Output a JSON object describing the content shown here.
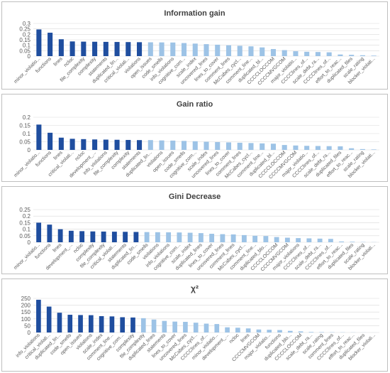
{
  "colors": {
    "top": "#1f4e9f",
    "rest": "#9dc3e6",
    "grid": "#d9d9d9",
    "axis_text": "#595959"
  },
  "chart_data": [
    {
      "type": "bar",
      "title": "Information gain",
      "ylim": [
        0,
        0.3
      ],
      "yticks": [
        0,
        0.05,
        0.1,
        0.15,
        0.2,
        0.25,
        0.3
      ],
      "grid": true,
      "highlighted_count": 10,
      "categories": [
        "minor_violatio...",
        "functions",
        "lines",
        "ncloc",
        "file_complexity",
        "complexity",
        "statements",
        "duplicated_lin...",
        "critical_violati...",
        "violations",
        "open_issues",
        "code_smells",
        "info_violations",
        "cognitive_com...",
        "scale_index",
        "uncovered_lines",
        "lines_to_cover",
        "comment_lines",
        "McCabes_cycl...",
        "comment_line...",
        "duplicated_bl...",
        "CCCCLOCCOM",
        "CCCCMVGCOM",
        "major_violatio...",
        "CCCClines_of...",
        "scale_debt_ra...",
        "CCCClines_of...",
        "effort_to_reac...",
        "duplicated_files",
        "scale_rating",
        "blocker_violati..."
      ],
      "values": [
        0.245,
        0.215,
        0.155,
        0.135,
        0.133,
        0.132,
        0.131,
        0.13,
        0.129,
        0.128,
        0.127,
        0.126,
        0.125,
        0.12,
        0.115,
        0.11,
        0.105,
        0.1,
        0.095,
        0.09,
        0.08,
        0.065,
        0.055,
        0.045,
        0.04,
        0.038,
        0.035,
        0.015,
        0.012,
        0.008,
        0.005
      ]
    },
    {
      "type": "bar",
      "title": "Gain ratio",
      "ylim": [
        0,
        0.2
      ],
      "yticks": [
        0,
        0.05,
        0.1,
        0.15,
        0.2
      ],
      "grid": true,
      "highlighted_count": 10,
      "categories": [
        "minor_violatio...",
        "functions",
        "lines",
        "critical_violati...",
        "ncloc",
        "development_...",
        "info_violations",
        "file_complexity",
        "complexity",
        "statements",
        "duplicated_lin...",
        "violations",
        "open_issues",
        "code_smells",
        "cognitive_com...",
        "scale_index",
        "uncovered_lines",
        "lines_to_cover",
        "comment_lines",
        "McCabes_cycl...",
        "comment_line...",
        "duplicated_bl...",
        "CCCCLOCCOM",
        "CCCCMVGCOM",
        "major_violatio...",
        "CCCClines_of...",
        "scale_debt_ra...",
        "duplicated_files",
        "effort_to_reac...",
        "scale_rating",
        "blocker_violati..."
      ],
      "values": [
        0.155,
        0.105,
        0.075,
        0.068,
        0.066,
        0.064,
        0.063,
        0.062,
        0.061,
        0.06,
        0.06,
        0.058,
        0.057,
        0.055,
        0.053,
        0.05,
        0.048,
        0.046,
        0.044,
        0.042,
        0.04,
        0.038,
        0.03,
        0.027,
        0.025,
        0.024,
        0.023,
        0.022,
        0.01,
        0.005,
        0.003
      ]
    },
    {
      "type": "bar",
      "title": "Gini Decrease",
      "ylim": [
        0,
        0.25
      ],
      "yticks": [
        0,
        0.05,
        0.1,
        0.15,
        0.2,
        0.25
      ],
      "grid": true,
      "highlighted_count": 10,
      "categories": [
        "minor_violatio...",
        "functions",
        "lines",
        "development_...",
        "ncloc",
        "complexity",
        "file_complexity",
        "critical_violati...",
        "statements",
        "duplicated_lin...",
        "code_smells",
        "violations",
        "info_violations",
        "cognitive_com...",
        "scale_index",
        "duplicated_lines",
        "lines_to_cover",
        "uncovered_lines",
        "comment_lines",
        "McCabes_cycl...",
        "comment_line...",
        "duplicated_blo...",
        "CCCCLOCCOM",
        "CCCCMVGCOM",
        "major_violations",
        "CCCClines_of...",
        "scale_debt_ra...",
        "CCCClines_of...",
        "effort_to_reac...",
        "duplicated_files",
        "scale_rating",
        "blocker_violati..."
      ],
      "values": [
        0.15,
        0.135,
        0.1,
        0.088,
        0.085,
        0.083,
        0.082,
        0.081,
        0.08,
        0.079,
        0.078,
        0.077,
        0.076,
        0.075,
        0.073,
        0.07,
        0.065,
        0.062,
        0.06,
        0.055,
        0.05,
        0.048,
        0.04,
        0.035,
        0.032,
        0.03,
        0.028,
        0.026,
        0.006,
        0.004,
        0.002,
        0.001
      ]
    },
    {
      "type": "bar",
      "title": "χ²",
      "ylim": [
        0,
        250
      ],
      "yticks": [
        0,
        50,
        100,
        150,
        200,
        250
      ],
      "grid": true,
      "highlighted_count": 10,
      "categories": [
        "info_violations",
        "critical_violati...",
        "duplicated_lin...",
        "code_smells",
        "open_issues",
        "violations",
        "scale_index",
        "comment_line...",
        "cognitive_com...",
        "complexity",
        "file_complexity",
        "duplicated_lines",
        "statements",
        "lines_to_cover",
        "uncovered_lines",
        "McCabes_cycl...",
        "CCCClines_of...",
        "minor_violatio...",
        "development_...",
        "ncloc",
        "lines",
        "CCCCMVGCOM",
        "major_violatio...",
        "functions",
        "duplicated_blo...",
        "CCCCLOCCOM",
        "scale_debt_ra...",
        "scale_rating",
        "comment_lines",
        "CCCClines_of...",
        "effort_to_reac...",
        "duplicated_files",
        "blocker_violati..."
      ],
      "values": [
        240,
        190,
        145,
        130,
        128,
        127,
        120,
        118,
        112,
        110,
        105,
        95,
        85,
        80,
        78,
        72,
        65,
        62,
        38,
        35,
        30,
        22,
        20,
        18,
        12,
        8,
        4,
        3,
        2,
        1.5,
        1,
        0.5,
        0.3
      ]
    }
  ]
}
